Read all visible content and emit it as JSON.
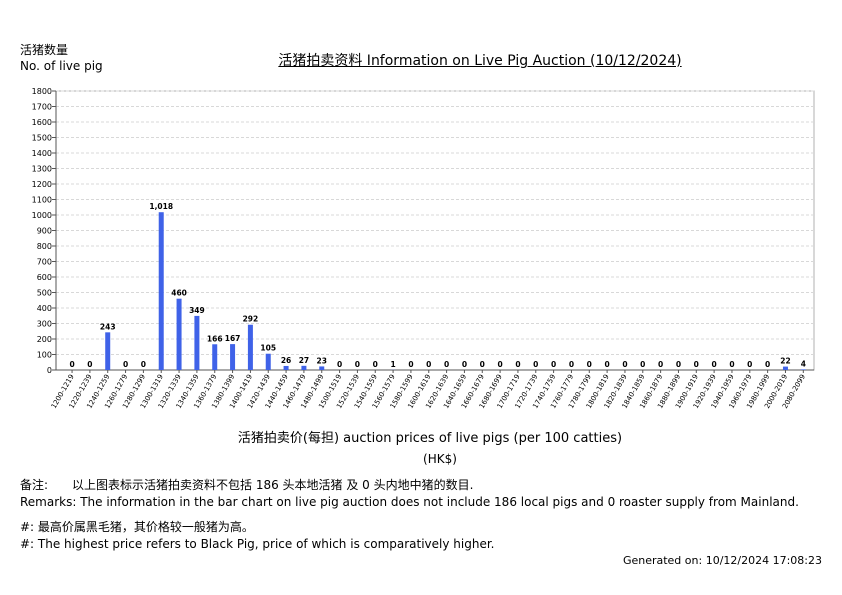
{
  "header": {
    "y_unit_cn": "活猪数量",
    "y_unit_en": "No. of live pig",
    "title": "活猪拍卖资料 Information on Live Pig Auction (10/12/2024)"
  },
  "chart_data": {
    "type": "bar",
    "title": "活猪拍卖资料 Information on Live Pig Auction (10/12/2024)",
    "xlabel": "活猪拍卖价(每担) auction prices of live pigs (per 100 catties)",
    "xunit": "(HK$)",
    "ylabel": "活猪数量 No. of live pig",
    "ylim": [
      0,
      1800
    ],
    "yticks": [
      0,
      100,
      200,
      300,
      400,
      500,
      600,
      700,
      800,
      900,
      1000,
      1100,
      1200,
      1300,
      1400,
      1500,
      1600,
      1700,
      1800
    ],
    "grid": true,
    "bar_color": "#3f62e8",
    "categories": [
      "1200-1219",
      "1220-1239",
      "1240-1259",
      "1260-1279",
      "1280-1299",
      "1300-1319",
      "1320-1339",
      "1340-1359",
      "1360-1379",
      "1380-1399",
      "1400-1419",
      "1420-1439",
      "1440-1459",
      "1460-1479",
      "1480-1499",
      "1500-1519",
      "1520-1539",
      "1540-1559",
      "1560-1579",
      "1580-1599",
      "1600-1619",
      "1620-1639",
      "1640-1659",
      "1660-1679",
      "1680-1699",
      "1700-1719",
      "1720-1739",
      "1740-1759",
      "1760-1779",
      "1780-1799",
      "1800-1819",
      "1820-1839",
      "1840-1859",
      "1860-1879",
      "1880-1899",
      "1900-1919",
      "1920-1939",
      "1940-1959",
      "1960-1979",
      "1980-1999",
      "2000-2019",
      "2080-2099"
    ],
    "values": [
      0,
      0,
      243,
      0,
      0,
      1018,
      460,
      349,
      166,
      167,
      292,
      105,
      26,
      27,
      23,
      0,
      0,
      0,
      1,
      0,
      0,
      0,
      0,
      0,
      0,
      0,
      0,
      0,
      0,
      0,
      0,
      0,
      0,
      0,
      0,
      0,
      0,
      0,
      0,
      0,
      22,
      4
    ],
    "labels": [
      "0",
      "0",
      "243",
      "0",
      "0",
      "1,018",
      "460",
      "349",
      "166",
      "167",
      "292",
      "105",
      "26",
      "27",
      "23",
      "0",
      "0",
      "0",
      "1",
      "0",
      "0",
      "0",
      "0",
      "0",
      "0",
      "0",
      "0",
      "0",
      "0",
      "0",
      "0",
      "0",
      "0",
      "0",
      "0",
      "0",
      "0",
      "0",
      "0",
      "0",
      "22",
      "4"
    ]
  },
  "notes": {
    "remark_cn_label": "备注:",
    "remark_cn_text": "以上图表标示活猪拍卖资料不包括 186 头本地活猪 及 0 头内地中猪的数目.",
    "remark_en": "Remarks: The information in the bar chart on live pig auction does not include 186 local pigs and 0 roaster supply from Mainland.",
    "highest_cn": "#: 最高价属黑毛猪，其价格较一般猪为高。",
    "highest_en": "#: The highest price refers to Black Pig, price of which is comparatively higher."
  },
  "footer": {
    "generated": "Generated on: 10/12/2024 17:08:23"
  }
}
